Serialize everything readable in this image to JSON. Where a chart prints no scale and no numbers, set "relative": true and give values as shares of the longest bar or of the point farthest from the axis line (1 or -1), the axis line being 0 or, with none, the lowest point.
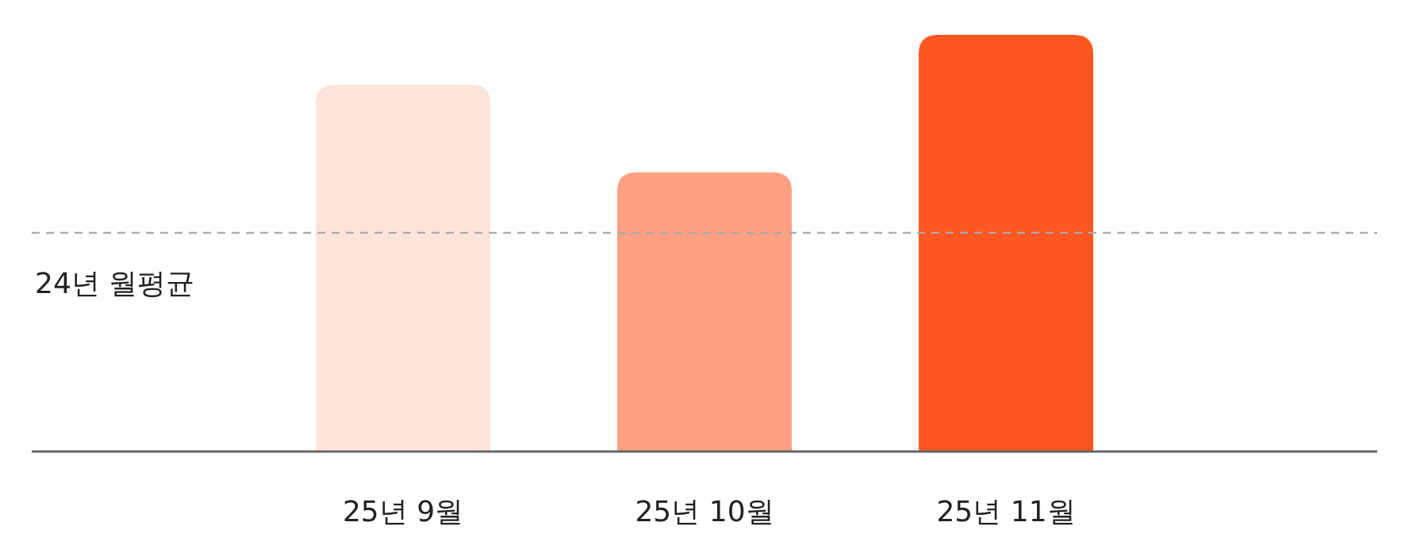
{
  "chart_data": {
    "type": "bar",
    "relative": true,
    "categories": [
      "25년 9월",
      "25년 10월",
      "25년 11월"
    ],
    "values": [
      0.88,
      0.67,
      1
    ],
    "colors": [
      "#fde4da",
      "#ffa083",
      "#ff5722"
    ],
    "ref_lines": [
      {
        "axis": "y",
        "value": 0.525,
        "label": "24년 월평균",
        "color": "#aaaaaa",
        "line_style": "dashed"
      }
    ]
  }
}
